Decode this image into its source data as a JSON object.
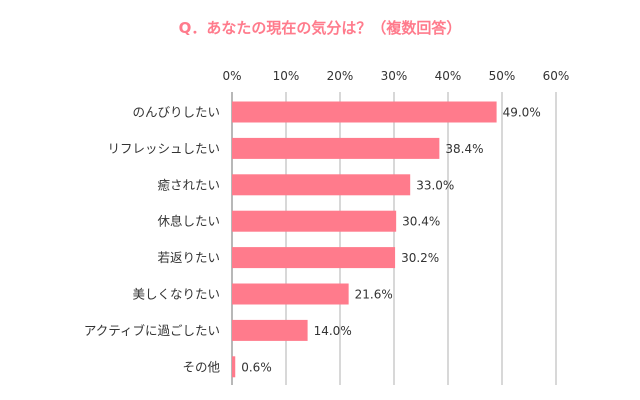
{
  "chart_data": {
    "type": "bar",
    "orientation": "horizontal",
    "title": "Q．あなたの現在の気分は？（複数回答）",
    "xlabel": "",
    "ylabel": "",
    "xlim": [
      0,
      60
    ],
    "tick_values": [
      0,
      10,
      20,
      30,
      40,
      50,
      60
    ],
    "tick_labels": [
      "0%",
      "10%",
      "20%",
      "30%",
      "40%",
      "50%",
      "60%"
    ],
    "grid": true,
    "categories": [
      "のんびりしたい",
      "リフレッシュしたい",
      "癒されたい",
      "休息したい",
      "若返りたい",
      "美しくなりたい",
      "アクティブに過ごしたい",
      "その他"
    ],
    "values": [
      49.0,
      38.4,
      33.0,
      30.4,
      30.2,
      21.6,
      14.0,
      0.6
    ],
    "value_labels": [
      "49.0%",
      "38.4%",
      "33.0%",
      "30.4%",
      "30.2%",
      "21.6%",
      "14.0%",
      "0.6%"
    ],
    "colors": {
      "bar": "#ff7b8c",
      "title": "#ff7b8c",
      "grid": "#b0b0b0",
      "axis": "#888888"
    }
  }
}
